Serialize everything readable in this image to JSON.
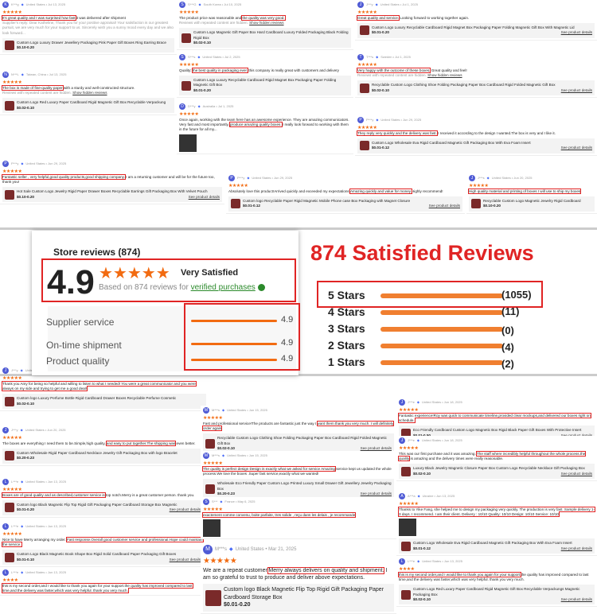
{
  "summary": {
    "tab": "Store reviews (874)",
    "score": "4.9",
    "stars": "★★★★★",
    "rating_label": "Very Satisfied",
    "based_on": "Based on 874 reviews for",
    "verified": "verified purchases",
    "rows": [
      {
        "label": "Supplier service",
        "value": "4.9"
      },
      {
        "label": "On-time shipment",
        "value": "4.9"
      },
      {
        "label": "Product quality",
        "value": "4.9"
      }
    ]
  },
  "headline": "874 Satisfied Reviews",
  "distribution": [
    {
      "label": "5 Stars",
      "count": "(1055)"
    },
    {
      "label": "4 Stars",
      "count": "(11)"
    },
    {
      "label": "3 Stars",
      "count": "(0)"
    },
    {
      "label": "2 Stars",
      "count": "(4)"
    },
    {
      "label": "1 Stars",
      "count": "(2)"
    }
  ],
  "accent": "#f26b11",
  "highlight_color": "#e02424",
  "see_details": "See product details",
  "hidden_note": "Reviews with repeated content are hidden.",
  "show_hidden": "Show hidden reviews",
  "reviews": [
    {
      "user": "K***g",
      "meta": "United States • Jul 13, 2025",
      "stars": 5,
      "text": "It's great quality and I was surprised how fast it was delivered after shipment",
      "hl": "It's great quality and I was surprised how fast",
      "reply": "Supplier's reply: Dear Katheline, Thank you for your positive appraisal! Your satisfaction is our greatest pursuit, we are very much for your support to us. Sincerely wish you a sunny mood every day and we also look forward...",
      "product": "Custom Logo Luxury Drawer Jewellery Packaging Pink Paper Gift Boxes Ring Earring Brace",
      "price": "$0.10-0.20"
    },
    {
      "user": "N***L",
      "meta": "Taiwan, China • Jul 13, 2025",
      "stars": 5,
      "text": "The box is made of fine-quality paper with a sturdy and well-constructed structure.",
      "hl": "The box is made of fine-quality paper",
      "hidden": true,
      "product": "Custom Logo Red Luxury Paper Cardboard Rigid Magnetic Gift Box Recyclable Verpackung",
      "price": "$0.02-0.10"
    },
    {
      "user": "S***G",
      "meta": "South Korea • Jul 10, 2025",
      "stars": 5,
      "text": "The product price was reasonable and the quality was very good.",
      "hl": "the quality was very good.",
      "hidden": true,
      "product": "Custom Logo Magnetic Gift Paper Box Hard Cardboard Luxury Folded Packaging Black Folding Rigid Box",
      "price": "$0.02-0.10"
    },
    {
      "user": "S***s",
      "meta": "United States • Jul 2, 2025",
      "stars": 5,
      "text": "Quality: the best quality in packaging ever. this company is really great with customers and delivery",
      "hl": "the best quality in packaging ever.",
      "product": "Custom Logo Luxury Recyclable Cardboard Rigid Magnet Box Packaging Paper Folding Magnetic Gift Box",
      "price": "$0.01-0.20"
    },
    {
      "user": "D***y",
      "meta": "Australia • Jul 1, 2025",
      "stars": 5,
      "text": "Once again, working with the team here has an awesome experience. They are amazing communicators. Very fast and most importantly, produce amazing quality boxes. I really look forward to working with them in the future for all my...",
      "hl": "produce amazing quality boxes.",
      "image": true
    },
    {
      "user": "J***y",
      "meta": "United States • Jul 1, 2025",
      "stars": 5,
      "text": "Great quality and service. Looking forward to working together again.",
      "hl": "Great quality and service.",
      "product": "Custom Logo Luxury Recyclable Cardboard Rigid Magnet Box Packaging Paper Folding Magnetic Gift Box With Magnetic Lid",
      "price": "$0.01-0.20",
      "see": true
    },
    {
      "user": "T***s",
      "meta": "Sweden • Jul 1, 2025",
      "stars": 5,
      "text": "Very happy with the outcome of these boxes. Great quality and feel!",
      "hl": "Very happy with the outcome of these boxes.",
      "hidden": true,
      "product": "Recyclable Custom Logo Clothing Shoe Folding Packaging Paper Box Cardboard Rigid Folded Magnetic Gift Box",
      "price": "$0.02-0.10",
      "see": true
    },
    {
      "user": "P***y",
      "meta": "United States • Jun 29, 2025",
      "stars": 5,
      "text": "They reply very quickly and the delivery was fast. I received it according to the design I wanted.The box is very and I like it.",
      "hl": "They reply very quickly and the delivery was fast.",
      "product": "Custom Logo Wholesale Eva Rigid Cardboard Magnetic Gift Packaging Box With Eva Foam Insert",
      "price": "$0.01-0.12",
      "see": true
    },
    {
      "user": "P***y",
      "meta": "United States • Jun 29, 2025",
      "stars": 5,
      "text": "Fantastic seller , very helpful,good quality products,good shipping company. I am a returning customer and will be for the future too, thank you!",
      "hl": "Fantastic seller , very helpful,good quality products,good shipping company.",
      "product": "Hot Sale Custom Logo Jewelry Rigid Paper Drawer Boxes Recyclable Earrings Gift Packaging Box With Velvet Pouch",
      "price": "$0.10-0.20",
      "see": true
    },
    {
      "user": "P***y",
      "meta": "United States • Jun 29, 2025",
      "stars": 5,
      "text": "Absolutely love this product!Arrived quickly and exceeded my expectations.Amazing quickly and value for money.Highly recommend!",
      "hl": "Amazing quickly and value for money.",
      "product": "Custom logo Recyclable Paper Rigid Magnetic Mobile Phone case Box Packaging with Magnet Closure",
      "price": "$0.01-0.12",
      "see": true
    },
    {
      "user": "J***s",
      "meta": "United States • Jun 20, 2025",
      "stars": 5,
      "text": "High quality material and printing of boxes I will use to ship my boxes",
      "hl": "High quality material and printing of boxes I will use to ship my boxes",
      "product": "Recyclable Custom Logo Magnetic Jewelry Rigid Cardboard",
      "price": "$0.10-0.20"
    },
    {
      "user": "J***y",
      "meta": "United States",
      "stars": 5,
      "text": "Thank you Amy for being so helpful and willing to listen to what I needed! You were a great communicator and you were always on my side and trying to get me a good deal!",
      "hl": "Thank you Amy for being so helpful and willing to listen to what I needed! You were a great communicator and you were always on my side and trying to get me a good deal!",
      "product": "Custom logo Luxury Perfume Bottle Rigid Cardboard Drawer Boxes Recyclable Perfume Cosmetic",
      "price": "$0.02-0.10"
    },
    {
      "user": "J***y",
      "meta": "United States • Jun 20, 2025",
      "stars": 5,
      "text": "The boxes are everything I need them to be.Simple,high quality, and easy to put together.The shipping was even better.",
      "hl": "and easy to put together.The shipping was",
      "product": "Custom Wholesale Rigid Paper Cardboard Necklace Jewelry Gift Packaging Box with logo Bracelet",
      "price": "$0.20-0.23"
    },
    {
      "user": "L***e",
      "meta": "United States • Jun 13, 2025",
      "stars": 5,
      "text": "Boxes are of good quality and as described,customer service is top notch.Merry is a great customer person. thank you.",
      "hl": "Boxes are of good quality and as described,customer service is",
      "product": "Custom logo Black Magnetic Flip Top Rigid Gift Packaging Paper Cardboard Storage Box Magnetic",
      "price": "$0.01-0.20",
      "see": true
    },
    {
      "user": "L***e",
      "meta": "United States • Jun 13, 2025",
      "stars": 5,
      "text": "Nice to have Merry arranging my order. Fast response.Overall good customer service and professional.Hope could maintain the service.",
      "hl": "Fast response.Overall good customer service and professional.Hope could maintain the service.",
      "product": "Custom Logo Black Magnetic Book Shape Box Rigid Solid Cardboard Paper Packaging Gift Boxes",
      "price": "$0.01-0.10",
      "see": true
    },
    {
      "user": "L***e",
      "meta": "United States • Jun 13, 2025",
      "stars": 4,
      "text": "this is my second order,and I would like to thank you again for your support.the quality has improved compared to last time,and the delivery was faster,which was very helpful. thank you very much.",
      "hl": "this is my second order,and I would like to thank you again for your support.the quality has improved compared to last time,and the delivery was faster,which was very helpful. thank you very much."
    },
    {
      "user": "M***s",
      "meta": "United States • Jun 15, 2025",
      "stars": 5,
      "text": "Fast and professional service!The products are fantastic just the way I want them thank you very much. I will definitely order again",
      "hl": "want them thank you very much. I will definitely order again",
      "product": "Recyclable Custom Logo Clothing Shoe Folding Packaging Paper Box Cardboard Rigid Folded Magnetic Gift Box",
      "price": "$0.02-0.10",
      "see": true
    },
    {
      "user": "M***s",
      "meta": "United States • Jun 15, 2025",
      "stars": 5,
      "text": "The quality is perfect design Design is exactly what we asked for service Amazing service kept us updated the whole process.We love the boxes .Super fast service,exactly what we wanted!",
      "hl": "The quality is perfect design Design is exactly what we asked for service Amazing",
      "product": "Wholesale Eco Friendly Paper Custom Logo Printed Luxury Small Drawer Gift Jewellery Jewelry Packaging Box",
      "price": "$0.20-0.23",
      "see": true
    },
    {
      "user": "S***",
      "meta": "France • May 6, 2025",
      "stars": 5,
      "text": "exactement comme convenu, boite parfaite, tres solide , reçu dans les delais , je recommande",
      "hl": "exactement comme convenu, boite parfaite, tres solide , reçu dans les delais , je recommande",
      "image": true
    },
    {
      "user": "M***s",
      "meta": "United States • Mar 21, 2025",
      "stars": 5,
      "text": "We are a repeat customer.Merry always delivers on quality and shipment. I am so grateful to trust to produce and deliver above expectations.",
      "hl": "Merry always delivers on quality and shipment.",
      "product": "Custom logo Black Magnetic Flip Top Rigid Gift Packaging Paper Cardboard Storage Box",
      "price": "$0.01-0.20"
    },
    {
      "user": "J***e",
      "meta": "United States • Jun 18, 2025",
      "stars": 5,
      "text": "Fantastic experience!Roy was quick to communicate timeline,provided clear mockups,and delivered our boxes right on schedule.",
      "hl": "Fantastic experience!Roy was quick to communicate timeline,provided clear mockups,and delivered our boxes right on schedule.",
      "product": "Eco Friendly Cardboard Custom Logo Magnetic Box Rigid Black Paper Gift Boxes With Protective Insert",
      "price": "$0.01-0.50",
      "see": true
    },
    {
      "user": "J***e",
      "meta": "United States • Jun 18, 2025",
      "stars": 5,
      "text": "This was our first purchase and it was amazing. The staff where incredibly helpful throughout the whole process.the quality is amazing and the delivery times were really reasonable.",
      "hl": "The staff where incredibly helpful throughout the whole process.the quality",
      "product": "Luxury Black Jewelry Magnetic Closure Paper Box Custom Logo Recyclable Necklace Gift Packaging Box",
      "price": "$0.02-0.10",
      "see": true
    },
    {
      "user": "A***a",
      "meta": "Ukraine • Jun 13, 2025",
      "stars": 5,
      "text": "Thanks to Yike Fang, she helped me to design my packaging very quickly. The production is very fast. Sample delivery 1-3 days. I recommend. I am their client. Delivery : 10/10 Quality: 10/10 Design: 10/10 Service: 10/10",
      "hl": "Thanks to Yike Fang, she helped me to design my packaging very quickly. The production is very fast. Sample delivery 1-3 days. I recommend. I am their client. Delivery : 10/10 Quality: 10/10 Design: 10/10 Service: 10/10",
      "image": true,
      "product": "Custom Logo Wholesale Eva Rigid Cardboard Magnetic Gift Packaging Box With Eva Foam Insert",
      "price": "$0.01-0.12",
      "see": true
    },
    {
      "user": "L***e",
      "meta": "United States • Jun 13, 2025",
      "stars": 4,
      "text": "this is my second order,and I would like to thank you again for your support.the quality has improved compared to last time,and the delivery was faster,which was very helpful. thank you very much.",
      "hl": "this is my second order,and I would like to thank you again for your support.",
      "product": "Custom Logo Red Luxury Paper Cardboard Rigid Magnetic Gift Box Recyclable Verpackungs Magnetic Packaging Box",
      "price": "$0.02-0.10",
      "see": true
    }
  ]
}
